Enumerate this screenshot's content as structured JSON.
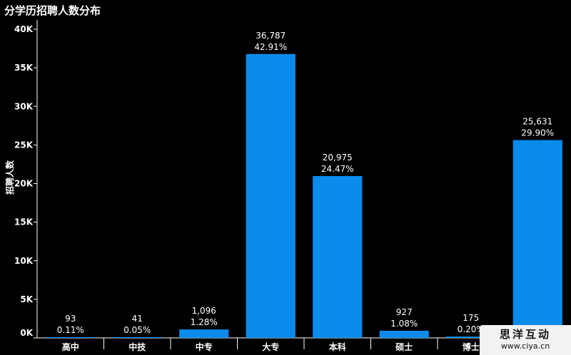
{
  "chart_data": {
    "type": "bar",
    "title": "分学历招聘人数分布",
    "ylabel": "招聘人数",
    "xlabel": "",
    "categories": [
      "高中",
      "中技",
      "中专",
      "大专",
      "本科",
      "硕士",
      "博士",
      ""
    ],
    "values": [
      93,
      41,
      1096,
      36787,
      20975,
      927,
      175,
      25631
    ],
    "value_labels": [
      "93",
      "41",
      "1,096",
      "36,787",
      "20,975",
      "927",
      "175",
      "25,631"
    ],
    "percent_labels": [
      "0.11%",
      "0.05%",
      "1.28%",
      "42.91%",
      "24.47%",
      "1.08%",
      "0.20%",
      "29.90%"
    ],
    "ylim": [
      0,
      40000
    ],
    "yticks": [
      0,
      5000,
      10000,
      15000,
      20000,
      25000,
      30000,
      35000,
      40000
    ],
    "ytick_labels": [
      "0K",
      "5K",
      "10K",
      "15K",
      "20K",
      "25K",
      "30K",
      "35K",
      "40K"
    ],
    "grid": false,
    "bar_color": "#0a8bec",
    "background": "#000000",
    "axis_color": "#ffffff"
  },
  "watermark": {
    "main": "思洋互动",
    "sub": "www.ciya.cn"
  }
}
